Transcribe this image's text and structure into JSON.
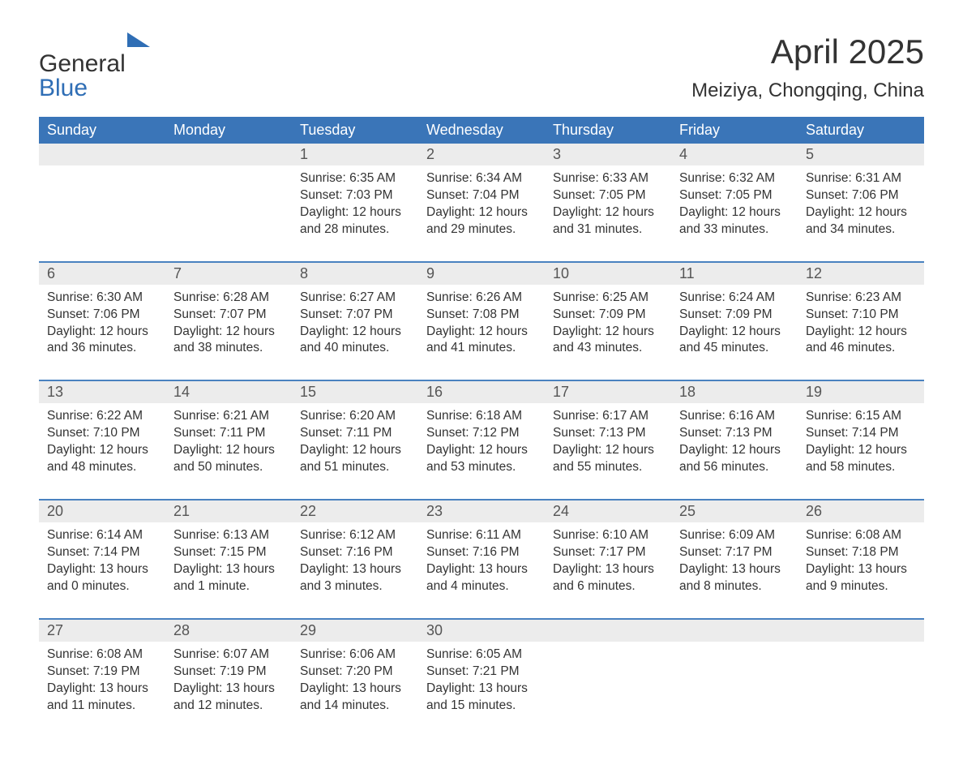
{
  "logo": {
    "text_general": "General",
    "text_blue": "Blue",
    "shape_color": "#2f6eb5"
  },
  "title": "April 2025",
  "location": "Meiziya, Chongqing, China",
  "colors": {
    "header_bg": "#3a75b8",
    "header_text": "#ffffff",
    "row_border": "#4a82c0",
    "daynum_bg": "#ececec",
    "daynum_text": "#555555",
    "body_text": "#333333",
    "page_bg": "#ffffff"
  },
  "typography": {
    "title_fontsize": 42,
    "location_fontsize": 24,
    "dayheader_fontsize": 18,
    "daynum_fontsize": 18,
    "body_fontsize": 15.5
  },
  "day_headers": [
    "Sunday",
    "Monday",
    "Tuesday",
    "Wednesday",
    "Thursday",
    "Friday",
    "Saturday"
  ],
  "weeks": [
    [
      {
        "day": "",
        "sunrise": "",
        "sunset": "",
        "daylight": ""
      },
      {
        "day": "",
        "sunrise": "",
        "sunset": "",
        "daylight": ""
      },
      {
        "day": "1",
        "sunrise": "Sunrise: 6:35 AM",
        "sunset": "Sunset: 7:03 PM",
        "daylight": "Daylight: 12 hours and 28 minutes."
      },
      {
        "day": "2",
        "sunrise": "Sunrise: 6:34 AM",
        "sunset": "Sunset: 7:04 PM",
        "daylight": "Daylight: 12 hours and 29 minutes."
      },
      {
        "day": "3",
        "sunrise": "Sunrise: 6:33 AM",
        "sunset": "Sunset: 7:05 PM",
        "daylight": "Daylight: 12 hours and 31 minutes."
      },
      {
        "day": "4",
        "sunrise": "Sunrise: 6:32 AM",
        "sunset": "Sunset: 7:05 PM",
        "daylight": "Daylight: 12 hours and 33 minutes."
      },
      {
        "day": "5",
        "sunrise": "Sunrise: 6:31 AM",
        "sunset": "Sunset: 7:06 PM",
        "daylight": "Daylight: 12 hours and 34 minutes."
      }
    ],
    [
      {
        "day": "6",
        "sunrise": "Sunrise: 6:30 AM",
        "sunset": "Sunset: 7:06 PM",
        "daylight": "Daylight: 12 hours and 36 minutes."
      },
      {
        "day": "7",
        "sunrise": "Sunrise: 6:28 AM",
        "sunset": "Sunset: 7:07 PM",
        "daylight": "Daylight: 12 hours and 38 minutes."
      },
      {
        "day": "8",
        "sunrise": "Sunrise: 6:27 AM",
        "sunset": "Sunset: 7:07 PM",
        "daylight": "Daylight: 12 hours and 40 minutes."
      },
      {
        "day": "9",
        "sunrise": "Sunrise: 6:26 AM",
        "sunset": "Sunset: 7:08 PM",
        "daylight": "Daylight: 12 hours and 41 minutes."
      },
      {
        "day": "10",
        "sunrise": "Sunrise: 6:25 AM",
        "sunset": "Sunset: 7:09 PM",
        "daylight": "Daylight: 12 hours and 43 minutes."
      },
      {
        "day": "11",
        "sunrise": "Sunrise: 6:24 AM",
        "sunset": "Sunset: 7:09 PM",
        "daylight": "Daylight: 12 hours and 45 minutes."
      },
      {
        "day": "12",
        "sunrise": "Sunrise: 6:23 AM",
        "sunset": "Sunset: 7:10 PM",
        "daylight": "Daylight: 12 hours and 46 minutes."
      }
    ],
    [
      {
        "day": "13",
        "sunrise": "Sunrise: 6:22 AM",
        "sunset": "Sunset: 7:10 PM",
        "daylight": "Daylight: 12 hours and 48 minutes."
      },
      {
        "day": "14",
        "sunrise": "Sunrise: 6:21 AM",
        "sunset": "Sunset: 7:11 PM",
        "daylight": "Daylight: 12 hours and 50 minutes."
      },
      {
        "day": "15",
        "sunrise": "Sunrise: 6:20 AM",
        "sunset": "Sunset: 7:11 PM",
        "daylight": "Daylight: 12 hours and 51 minutes."
      },
      {
        "day": "16",
        "sunrise": "Sunrise: 6:18 AM",
        "sunset": "Sunset: 7:12 PM",
        "daylight": "Daylight: 12 hours and 53 minutes."
      },
      {
        "day": "17",
        "sunrise": "Sunrise: 6:17 AM",
        "sunset": "Sunset: 7:13 PM",
        "daylight": "Daylight: 12 hours and 55 minutes."
      },
      {
        "day": "18",
        "sunrise": "Sunrise: 6:16 AM",
        "sunset": "Sunset: 7:13 PM",
        "daylight": "Daylight: 12 hours and 56 minutes."
      },
      {
        "day": "19",
        "sunrise": "Sunrise: 6:15 AM",
        "sunset": "Sunset: 7:14 PM",
        "daylight": "Daylight: 12 hours and 58 minutes."
      }
    ],
    [
      {
        "day": "20",
        "sunrise": "Sunrise: 6:14 AM",
        "sunset": "Sunset: 7:14 PM",
        "daylight": "Daylight: 13 hours and 0 minutes."
      },
      {
        "day": "21",
        "sunrise": "Sunrise: 6:13 AM",
        "sunset": "Sunset: 7:15 PM",
        "daylight": "Daylight: 13 hours and 1 minute."
      },
      {
        "day": "22",
        "sunrise": "Sunrise: 6:12 AM",
        "sunset": "Sunset: 7:16 PM",
        "daylight": "Daylight: 13 hours and 3 minutes."
      },
      {
        "day": "23",
        "sunrise": "Sunrise: 6:11 AM",
        "sunset": "Sunset: 7:16 PM",
        "daylight": "Daylight: 13 hours and 4 minutes."
      },
      {
        "day": "24",
        "sunrise": "Sunrise: 6:10 AM",
        "sunset": "Sunset: 7:17 PM",
        "daylight": "Daylight: 13 hours and 6 minutes."
      },
      {
        "day": "25",
        "sunrise": "Sunrise: 6:09 AM",
        "sunset": "Sunset: 7:17 PM",
        "daylight": "Daylight: 13 hours and 8 minutes."
      },
      {
        "day": "26",
        "sunrise": "Sunrise: 6:08 AM",
        "sunset": "Sunset: 7:18 PM",
        "daylight": "Daylight: 13 hours and 9 minutes."
      }
    ],
    [
      {
        "day": "27",
        "sunrise": "Sunrise: 6:08 AM",
        "sunset": "Sunset: 7:19 PM",
        "daylight": "Daylight: 13 hours and 11 minutes."
      },
      {
        "day": "28",
        "sunrise": "Sunrise: 6:07 AM",
        "sunset": "Sunset: 7:19 PM",
        "daylight": "Daylight: 13 hours and 12 minutes."
      },
      {
        "day": "29",
        "sunrise": "Sunrise: 6:06 AM",
        "sunset": "Sunset: 7:20 PM",
        "daylight": "Daylight: 13 hours and 14 minutes."
      },
      {
        "day": "30",
        "sunrise": "Sunrise: 6:05 AM",
        "sunset": "Sunset: 7:21 PM",
        "daylight": "Daylight: 13 hours and 15 minutes."
      },
      {
        "day": "",
        "sunrise": "",
        "sunset": "",
        "daylight": ""
      },
      {
        "day": "",
        "sunrise": "",
        "sunset": "",
        "daylight": ""
      },
      {
        "day": "",
        "sunrise": "",
        "sunset": "",
        "daylight": ""
      }
    ]
  ]
}
